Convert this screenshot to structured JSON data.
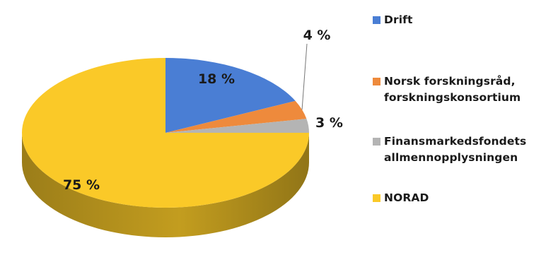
{
  "chart_data": {
    "type": "pie",
    "slices": [
      {
        "label": "Drift",
        "value": 18,
        "display": "18 %",
        "color": "#4a7ed4"
      },
      {
        "label": "Norsk forskningsråd,\nforskningskonsortium",
        "value": 4,
        "display": "4 %",
        "color": "#ee8a3c"
      },
      {
        "label": "Finansmarkedsfondets\nallmennopplysningen",
        "value": 3,
        "display": "3 %",
        "color": "#b4b4b4"
      },
      {
        "label": "NORAD",
        "value": 75,
        "display": "75 %",
        "color": "#fac928"
      }
    ],
    "legend_position": "right"
  }
}
